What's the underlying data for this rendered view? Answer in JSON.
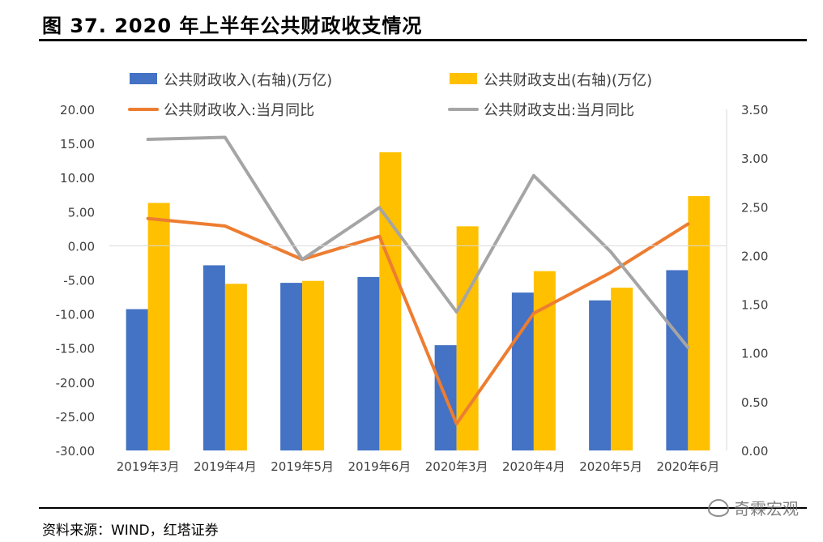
{
  "header": {
    "title": "图 37. 2020 年上半年公共财政收支情况"
  },
  "footer": {
    "source": "资料来源：WIND，红塔证券",
    "watermark": "奇霖宏观"
  },
  "chart_data": {
    "type": "bar",
    "categories": [
      "2019年3月",
      "2019年4月",
      "2019年5月",
      "2019年6月",
      "2020年3月",
      "2020年4月",
      "2020年5月",
      "2020年6月"
    ],
    "y_left": {
      "ticks": [
        "20.00",
        "15.00",
        "10.00",
        "5.00",
        "0.00",
        "-5.00",
        "-10.00",
        "-15.00",
        "-20.00",
        "-25.00",
        "-30.00"
      ],
      "range": [
        -30,
        20
      ]
    },
    "y_right": {
      "ticks": [
        "3.50",
        "3.00",
        "2.50",
        "2.00",
        "1.50",
        "1.00",
        "0.50",
        "0.00"
      ],
      "range": [
        0,
        3.5
      ]
    },
    "series": [
      {
        "name": "公共财政收入(右轴)(万亿)",
        "kind": "bar",
        "axis": "right",
        "color": "#4472C4",
        "values": [
          1.45,
          1.9,
          1.72,
          1.78,
          1.08,
          1.62,
          1.54,
          1.85
        ]
      },
      {
        "name": "公共财政支出(右轴)(万亿)",
        "kind": "bar",
        "axis": "right",
        "color": "#FFC000",
        "values": [
          2.54,
          1.71,
          1.74,
          3.06,
          2.3,
          1.84,
          1.67,
          2.61
        ]
      },
      {
        "name": "公共财政收入:当月同比",
        "kind": "line",
        "axis": "left",
        "color": "#ED7D31",
        "values": [
          4.0,
          2.9,
          -2.0,
          1.4,
          -26.1,
          -9.9,
          -3.9,
          3.2
        ]
      },
      {
        "name": "公共财政支出:当月同比",
        "kind": "line",
        "axis": "left",
        "color": "#A5A5A5",
        "values": [
          15.6,
          15.9,
          -2.0,
          5.6,
          -9.7,
          10.3,
          -0.9,
          -14.9
        ]
      }
    ],
    "legend_position": "top",
    "grid": false
  }
}
